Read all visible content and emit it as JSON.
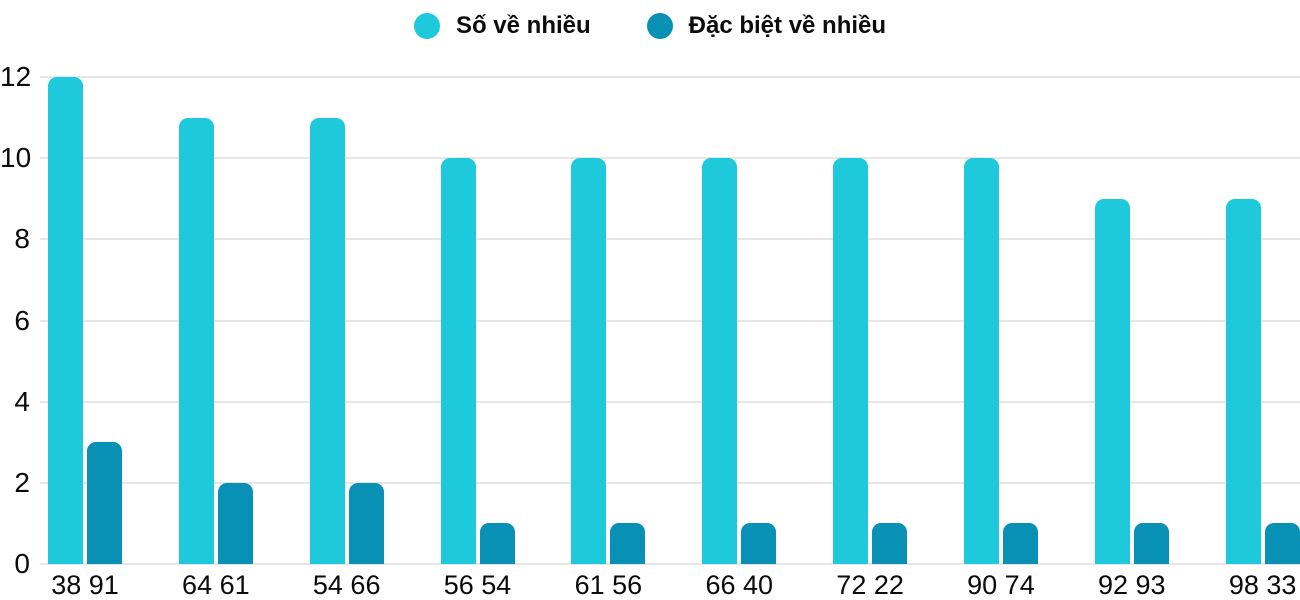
{
  "chart_data": {
    "type": "bar",
    "categories": [
      "38 91",
      "64 61",
      "54 66",
      "56 54",
      "61 56",
      "66 40",
      "72 22",
      "90 74",
      "92 93",
      "98 33"
    ],
    "series": [
      {
        "name": "Số về nhiều",
        "color": "#1EC9DC",
        "values": [
          12,
          11,
          11,
          10,
          10,
          10,
          10,
          10,
          9,
          9
        ]
      },
      {
        "name": "Đặc biệt về nhiều",
        "color": "#0891B4",
        "values": [
          3,
          2,
          2,
          1,
          1,
          1,
          1,
          1,
          1,
          1
        ]
      }
    ],
    "title": "",
    "xlabel": "",
    "ylabel": "",
    "ylim": [
      0,
      12
    ],
    "yticks": [
      0,
      2,
      4,
      6,
      8,
      10,
      12
    ],
    "grid": true,
    "legend_position": "top",
    "background_color": "#FFFFFF",
    "gridline_color": "#E6E6E6",
    "text_color": "#0A0A0A"
  }
}
